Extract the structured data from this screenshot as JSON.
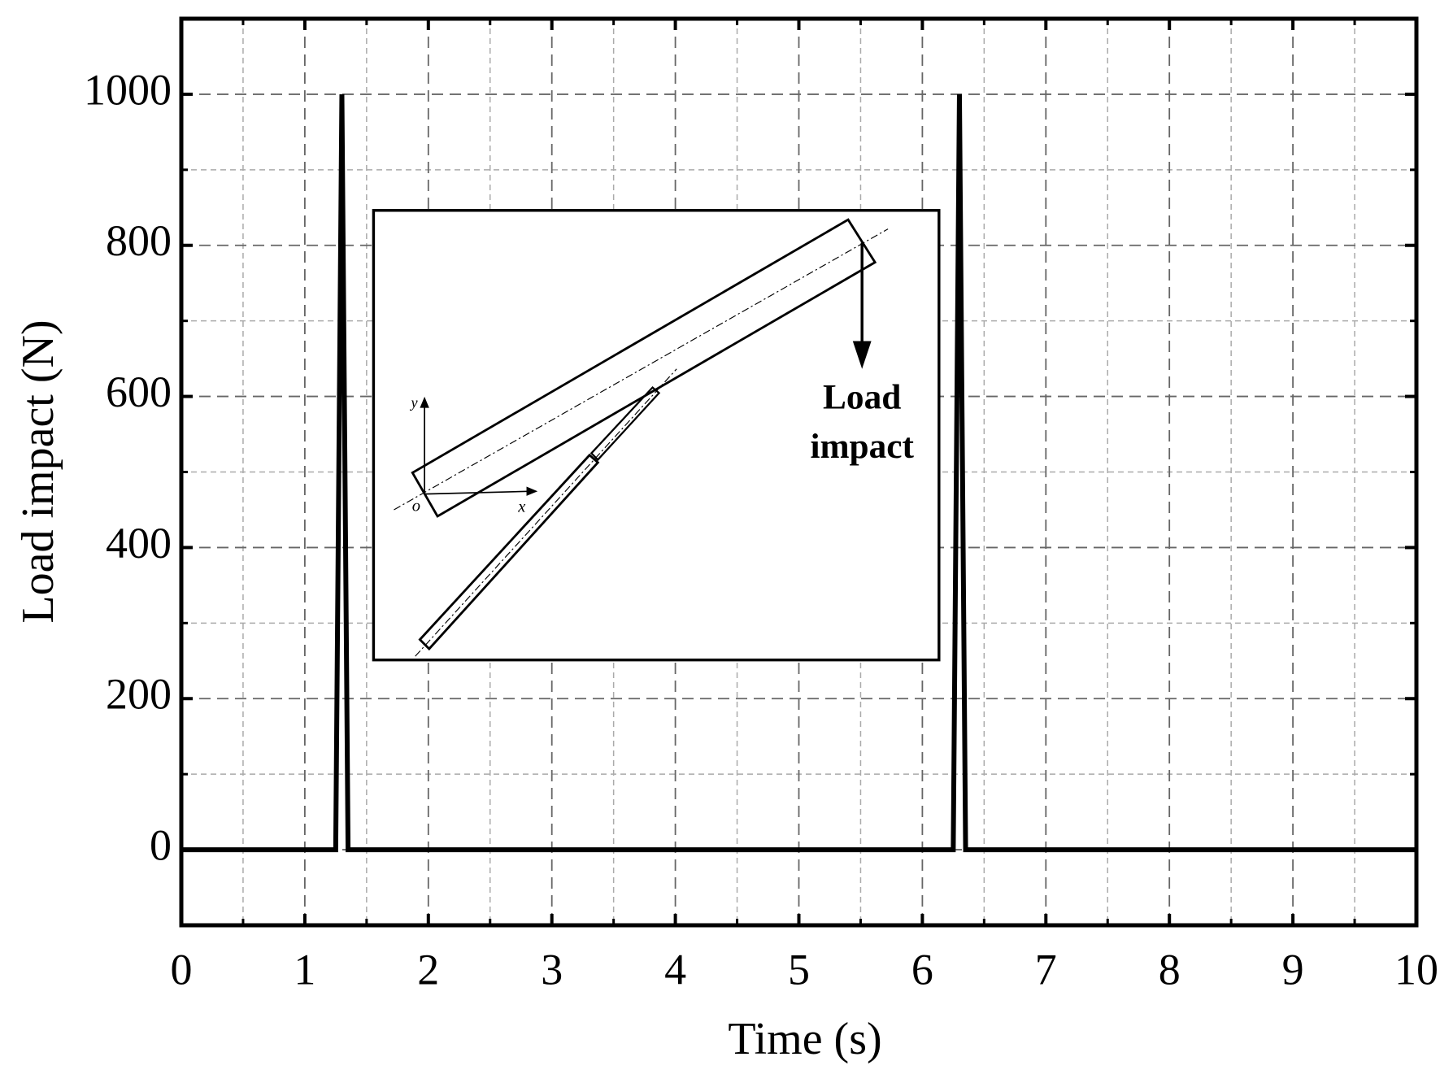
{
  "chart_data": {
    "type": "line",
    "x_label": "Time (s)",
    "y_label": "Load impact (N)",
    "x": [
      0,
      1.25,
      1.3,
      1.35,
      6.25,
      6.3,
      6.35,
      10
    ],
    "series": [
      {
        "name": "Load impact",
        "color": "#000000",
        "values": [
          0,
          0,
          1000,
          0,
          0,
          1000,
          0,
          0
        ]
      }
    ],
    "xlim": [
      0,
      10
    ],
    "ylim": [
      -100,
      1100
    ],
    "xticks": [
      0,
      1,
      2,
      3,
      4,
      5,
      6,
      7,
      8,
      9,
      10
    ],
    "yticks": [
      0,
      200,
      400,
      600,
      800,
      1000
    ],
    "grid": true,
    "inset_annotation": [
      "Load",
      "impact"
    ],
    "inset_axis_labels": [
      "x",
      "y",
      "o"
    ]
  }
}
